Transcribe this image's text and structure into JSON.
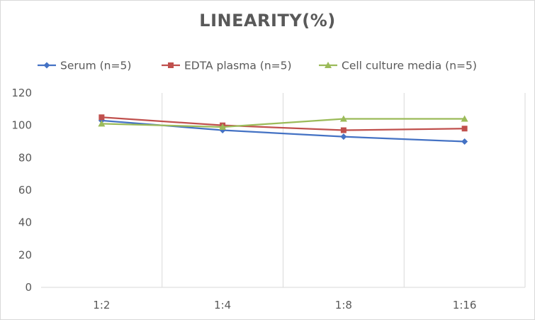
{
  "chart_data": {
    "type": "line",
    "title": "LINEARITY(%)",
    "xlabel": "",
    "ylabel": "",
    "categories": [
      "1:2",
      "1:4",
      "1:8",
      "1:16"
    ],
    "ylim": [
      0,
      120
    ],
    "yticks": [
      0,
      20,
      40,
      60,
      80,
      100,
      120
    ],
    "grid": "vertical category separators",
    "legend_position": "top",
    "series": [
      {
        "name": "Serum (n=5)",
        "color": "#4472c4",
        "marker": "diamond",
        "values": [
          103,
          97,
          93,
          90
        ]
      },
      {
        "name": "EDTA plasma (n=5)",
        "color": "#c0504d",
        "marker": "square",
        "values": [
          105,
          100,
          97,
          98
        ]
      },
      {
        "name": "Cell culture media (n=5)",
        "color": "#9bbb59",
        "marker": "triangle",
        "values": [
          101,
          99,
          104,
          104
        ]
      }
    ]
  }
}
